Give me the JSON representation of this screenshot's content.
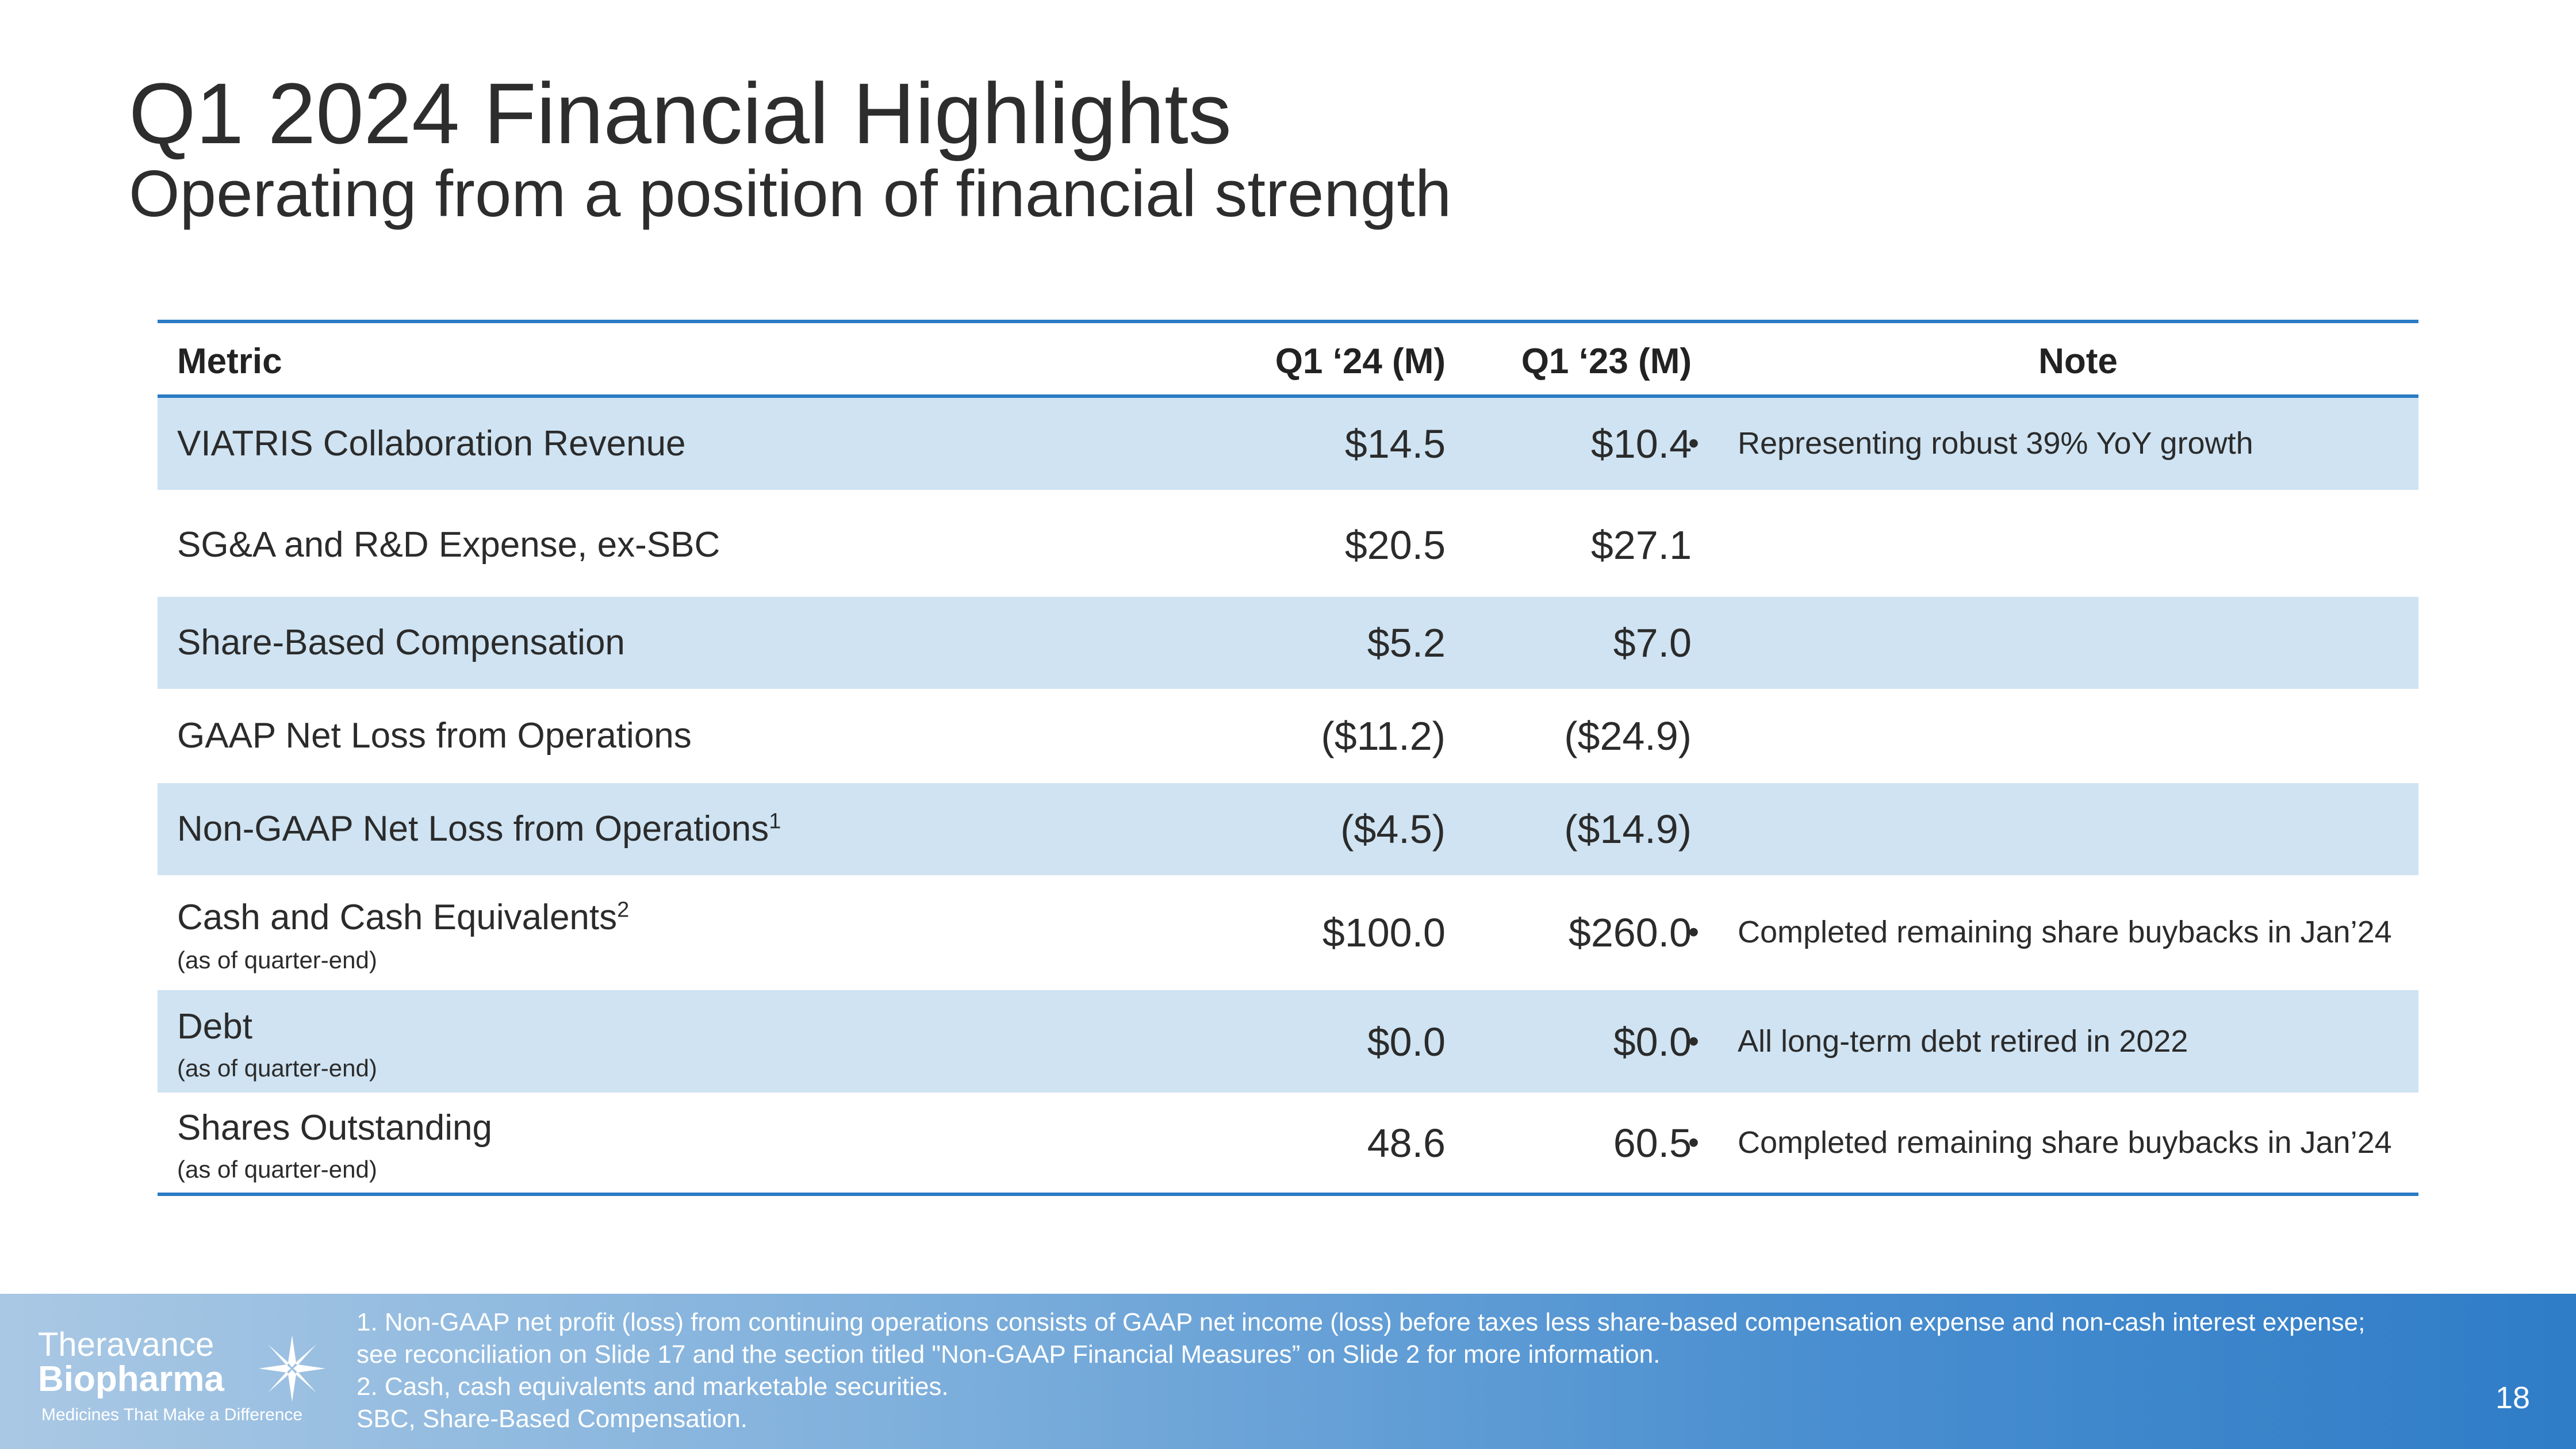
{
  "title": "Q1 2024 Financial Highlights",
  "subtitle": "Operating from a position of financial strength",
  "table": {
    "headers": {
      "metric": "Metric",
      "q24": "Q1 ‘24 (M)",
      "q23": "Q1 ‘23 (M)",
      "note": "Note"
    },
    "rows": [
      {
        "metric": "VIATRIS Collaboration Revenue",
        "sup": "",
        "sub": "",
        "q24": "$14.5",
        "q23": "$10.4",
        "bullet": "•",
        "note": "Representing robust 39% YoY growth"
      },
      {
        "metric": "SG&A and R&D Expense, ex-SBC",
        "sup": "",
        "sub": "",
        "q24": "$20.5",
        "q23": "$27.1",
        "bullet": "",
        "note": ""
      },
      {
        "metric": "Share-Based Compensation",
        "sup": "",
        "sub": "",
        "q24": "$5.2",
        "q23": "$7.0",
        "bullet": "",
        "note": ""
      },
      {
        "metric": "GAAP Net Loss from Operations",
        "sup": "",
        "sub": "",
        "q24": "($11.2)",
        "q23": "($24.9)",
        "bullet": "",
        "note": ""
      },
      {
        "metric": "Non-GAAP Net Loss from Operations",
        "sup": "1",
        "sub": "",
        "q24": "($4.5)",
        "q23": "($14.9)",
        "bullet": "",
        "note": ""
      },
      {
        "metric": "Cash and Cash Equivalents",
        "sup": "2",
        "sub": "(as of quarter-end)",
        "q24": "$100.0",
        "q23": "$260.0",
        "bullet": "•",
        "note": "Completed remaining share buybacks in Jan’24"
      },
      {
        "metric": "Debt",
        "sup": "",
        "sub": "(as of quarter-end)",
        "q24": "$0.0",
        "q23": "$0.0",
        "bullet": "•",
        "note": "All long-term debt retired in 2022"
      },
      {
        "metric": "Shares Outstanding",
        "sup": "",
        "sub": "(as of quarter-end)",
        "q24": "48.6",
        "q23": "60.5",
        "bullet": "•",
        "note": "Completed remaining share buybacks in Jan’24"
      }
    ]
  },
  "footer": {
    "logo_line1": "Theravance",
    "logo_line2": "Biopharma",
    "logo_tagline": "Medicines That Make a Difference",
    "notes": [
      "1. Non-GAAP net profit (loss) from continuing operations consists of GAAP net income (loss) before taxes less share-based compensation expense and non-cash interest expense;",
      "see reconciliation on Slide 17 and the section titled \"Non-GAAP Financial Measures” on Slide 2 for more information.",
      "2. Cash, cash equivalents and marketable securities.",
      "SBC, Share-Based Compensation."
    ],
    "page_number": "18"
  },
  "colors": {
    "accent": "#2a7bc4",
    "row_shade": "#cfe3f2"
  }
}
